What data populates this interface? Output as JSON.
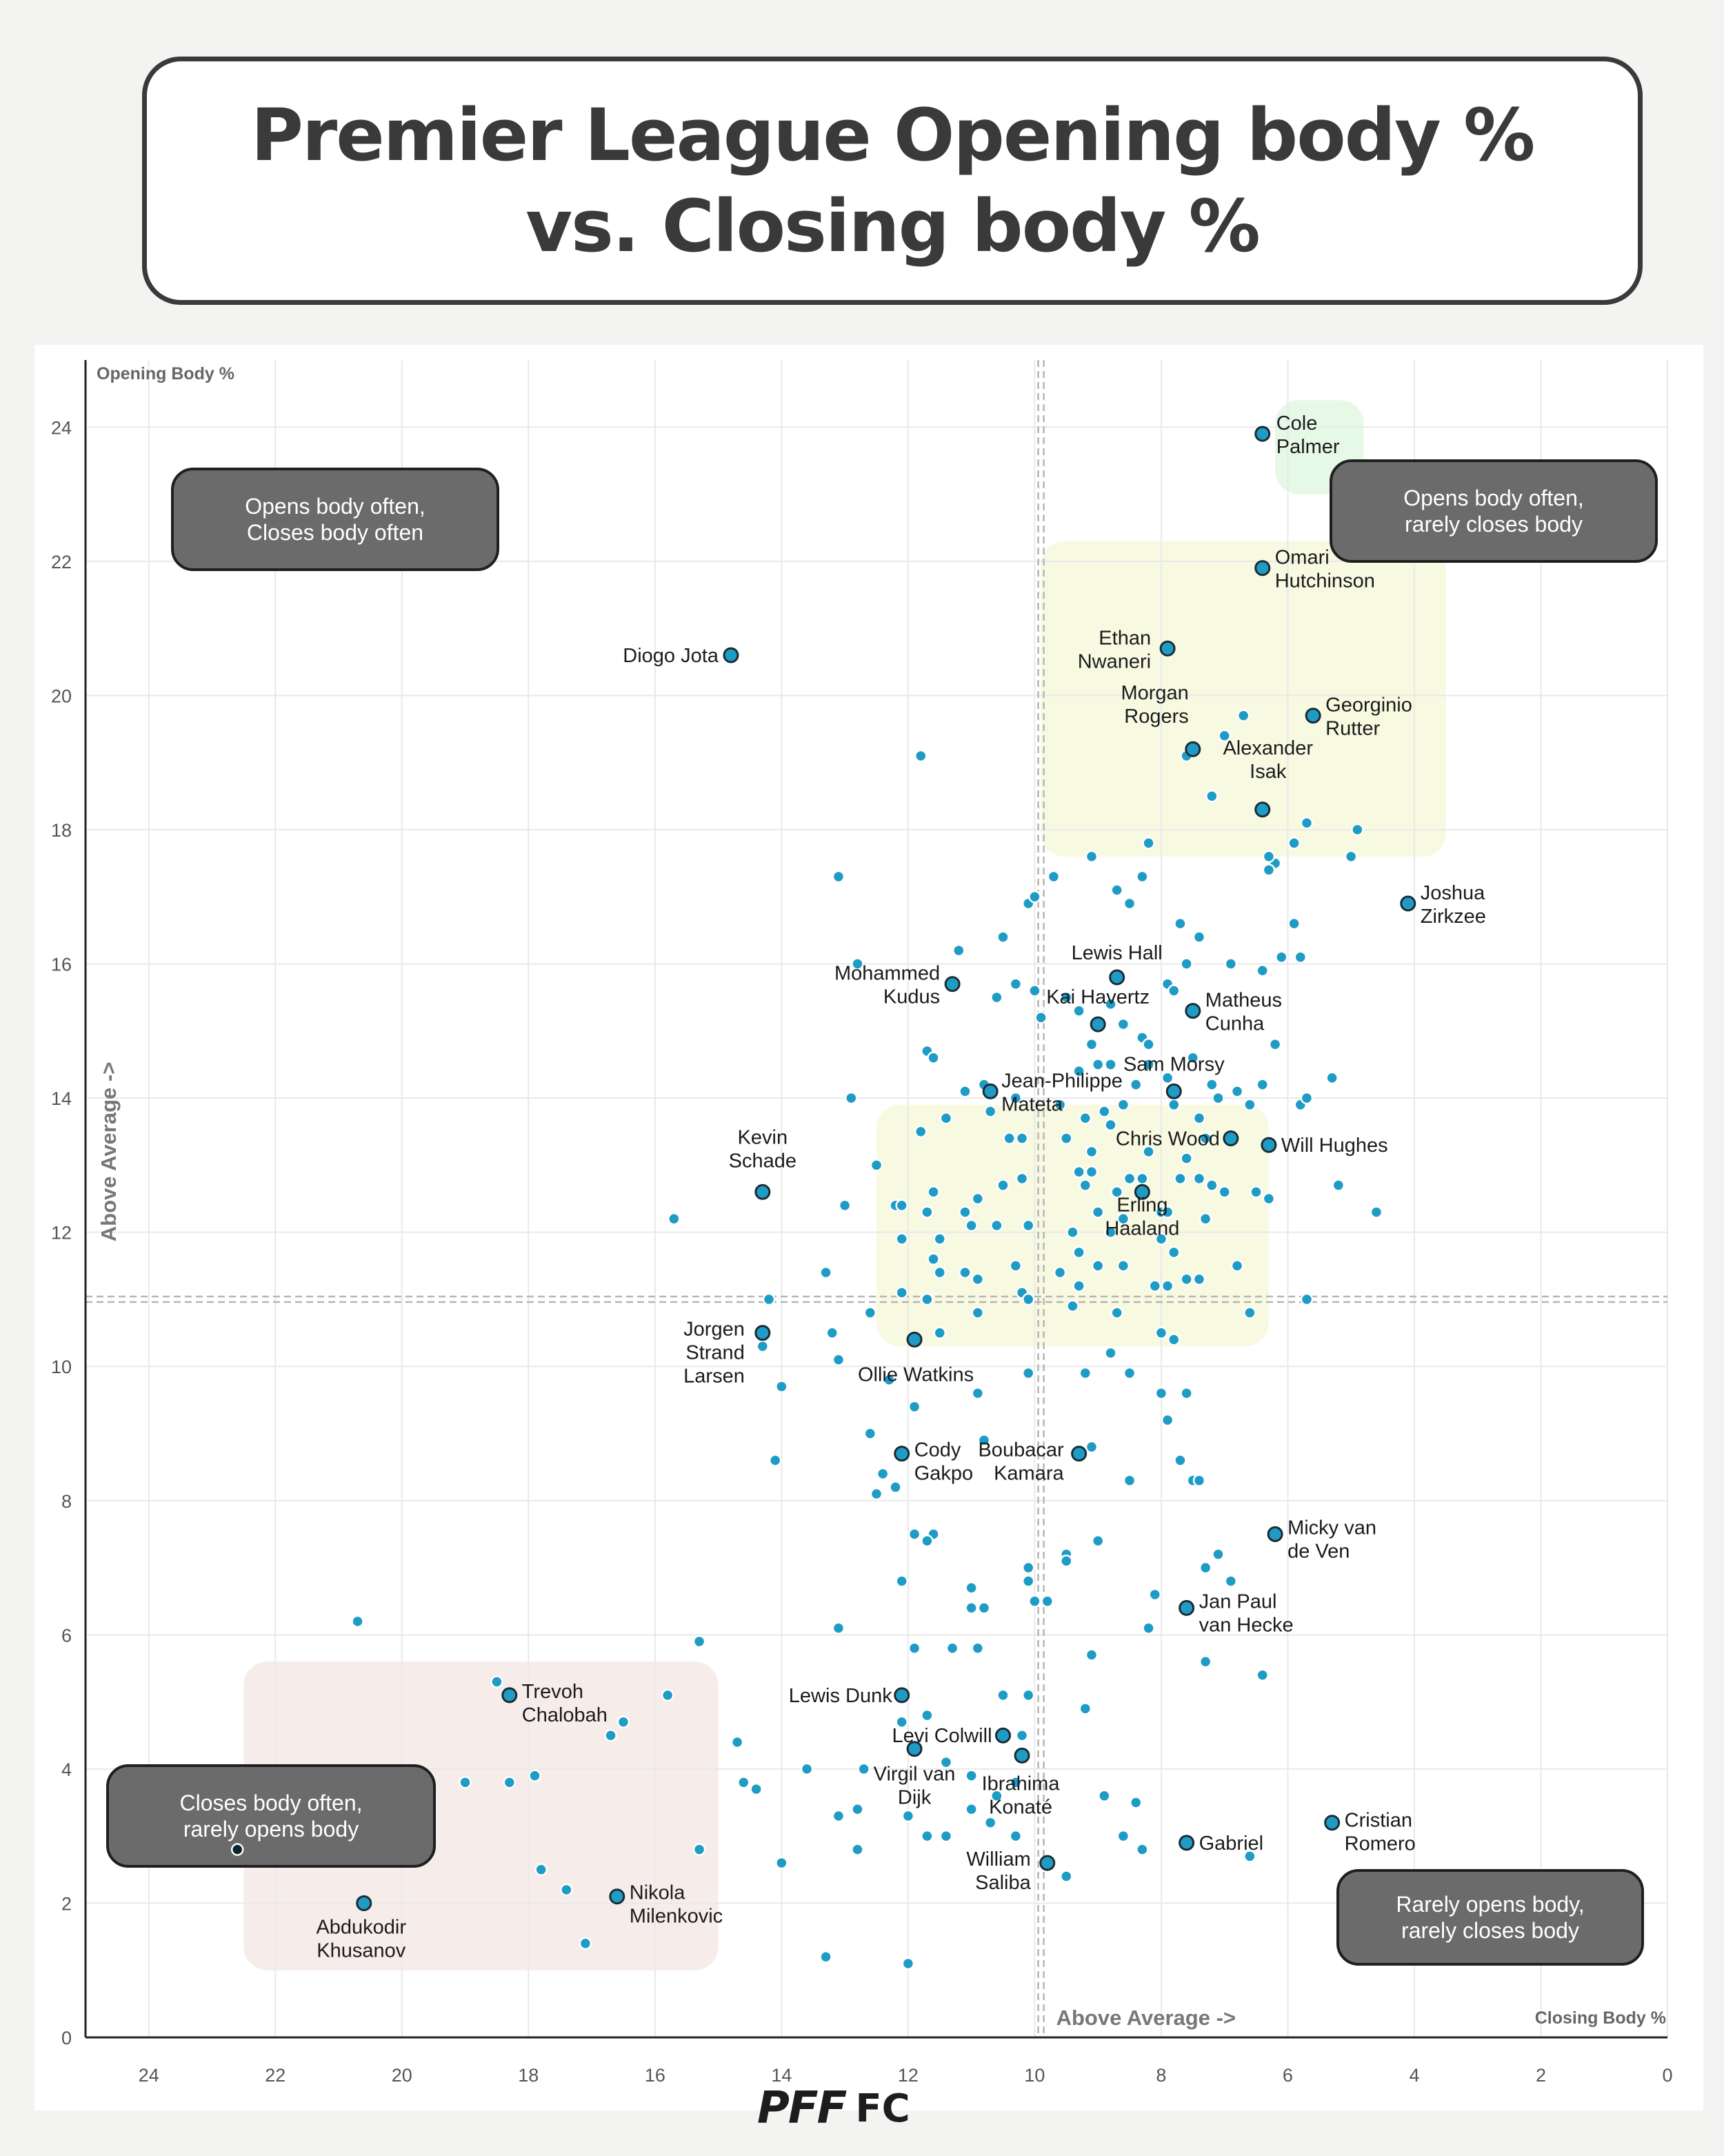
{
  "title": {
    "line1": "Premier League Opening body %",
    "line2": "vs. Closing body %"
  },
  "logo": {
    "pff": "PFF",
    "fc": "FC"
  },
  "colors": {
    "dot": "#1e9cc6",
    "dotStroke": "#ffffff",
    "labeledStroke": "#1c2b33",
    "quadrantBox": "#6b6b6b",
    "greenZone": "#e6f8e6",
    "yellowZone": "#f8f9e1",
    "redZone": "#f6ecea"
  },
  "chart_data": {
    "type": "scatter",
    "title": "Premier League Opening body % vs. Closing body %",
    "xlabel": "Closing Body %",
    "ylabel": "Opening Body %",
    "x_axis_reversed": true,
    "xlim": [
      25,
      0
    ],
    "ylim": [
      0,
      25
    ],
    "xticks": [
      24,
      22,
      20,
      18,
      16,
      14,
      12,
      10,
      8,
      6,
      4,
      2,
      0
    ],
    "yticks": [
      0,
      2,
      4,
      6,
      8,
      10,
      12,
      14,
      16,
      18,
      20,
      22,
      24
    ],
    "grid": true,
    "averages": {
      "x": 9.9,
      "y": 11.0
    },
    "avg_label_x": "Above Average ->",
    "avg_label_y": "Above Average ->",
    "quadrant_labels": [
      {
        "text": [
          "Opens body often,",
          "Closes body often"
        ],
        "corner": "top-left"
      },
      {
        "text": [
          "Opens body often,",
          "rarely closes body"
        ],
        "corner": "top-right"
      },
      {
        "text": [
          "Closes body often,",
          "rarely opens body"
        ],
        "corner": "bottom-left"
      },
      {
        "text": [
          "Rarely opens body,",
          "rarely closes body"
        ],
        "corner": "bottom-right"
      }
    ],
    "zones": [
      {
        "color": "green",
        "x": [
          6.2,
          4.8
        ],
        "y": [
          23.0,
          24.4
        ]
      },
      {
        "color": "yellow",
        "x": [
          9.9,
          3.5
        ],
        "y": [
          17.6,
          22.3
        ]
      },
      {
        "color": "yellow",
        "x": [
          12.5,
          6.3
        ],
        "y": [
          10.3,
          13.9
        ]
      },
      {
        "color": "red",
        "x": [
          22.5,
          15.0
        ],
        "y": [
          1.0,
          5.6
        ]
      }
    ],
    "labeled": [
      {
        "name": [
          "Cole",
          "Palmer"
        ],
        "x": 6.4,
        "y": 23.9
      },
      {
        "name": [
          "Omari",
          "Hutchinson"
        ],
        "x": 6.4,
        "y": 21.9
      },
      {
        "name": [
          "Ethan",
          "Nwaneri"
        ],
        "x": 7.9,
        "y": 20.7
      },
      {
        "name": [
          "Morgan",
          "Rogers"
        ],
        "x": 7.5,
        "y": 19.2
      },
      {
        "name": [
          "Georginio",
          "Rutter"
        ],
        "x": 5.6,
        "y": 19.7
      },
      {
        "name": [
          "Alexander",
          "Isak"
        ],
        "x": 6.4,
        "y": 18.3
      },
      {
        "name": [
          "Diogo Jota"
        ],
        "x": 14.8,
        "y": 20.6
      },
      {
        "name": [
          "Joshua",
          "Zirkzee"
        ],
        "x": 4.1,
        "y": 16.9
      },
      {
        "name": [
          "Lewis Hall"
        ],
        "x": 8.7,
        "y": 15.8
      },
      {
        "name": [
          "Mohammed",
          "Kudus"
        ],
        "x": 11.3,
        "y": 15.7
      },
      {
        "name": [
          "Kai Havertz"
        ],
        "x": 9.0,
        "y": 15.1
      },
      {
        "name": [
          "Matheus",
          "Cunha"
        ],
        "x": 7.5,
        "y": 15.3
      },
      {
        "name": [
          "Sam Morsy"
        ],
        "x": 7.8,
        "y": 14.1
      },
      {
        "name": [
          "Jean-Philippe",
          "Mateta"
        ],
        "x": 10.7,
        "y": 14.1
      },
      {
        "name": [
          "Chris Wood"
        ],
        "x": 6.9,
        "y": 13.4
      },
      {
        "name": [
          "Will Hughes"
        ],
        "x": 6.3,
        "y": 13.3
      },
      {
        "name": [
          "Kevin",
          "Schade"
        ],
        "x": 14.3,
        "y": 12.6
      },
      {
        "name": [
          "Erling",
          "Haaland"
        ],
        "x": 8.3,
        "y": 12.6
      },
      {
        "name": [
          "Jorgen",
          "Strand",
          "Larsen"
        ],
        "x": 14.3,
        "y": 10.5
      },
      {
        "name": [
          "Ollie Watkins"
        ],
        "x": 11.9,
        "y": 10.4
      },
      {
        "name": [
          "Cody",
          "Gakpo"
        ],
        "x": 12.1,
        "y": 8.7
      },
      {
        "name": [
          "Boubacar",
          "Kamara"
        ],
        "x": 9.3,
        "y": 8.7
      },
      {
        "name": [
          "Micky van",
          "de Ven"
        ],
        "x": 6.2,
        "y": 7.5
      },
      {
        "name": [
          "Jan Paul",
          "van Hecke"
        ],
        "x": 7.6,
        "y": 6.4
      },
      {
        "name": [
          "Trevoh",
          "Chalobah"
        ],
        "x": 18.3,
        "y": 5.1
      },
      {
        "name": [
          "Lewis Dunk"
        ],
        "x": 12.1,
        "y": 5.1
      },
      {
        "name": [
          "Levi Colwill"
        ],
        "x": 10.5,
        "y": 4.5
      },
      {
        "name": [
          "Virgil van",
          "Dijk"
        ],
        "x": 11.9,
        "y": 4.3
      },
      {
        "name": [
          "Ibrahima",
          "Konaté"
        ],
        "x": 10.2,
        "y": 4.2
      },
      {
        "name": [
          "Cristian",
          "Romero"
        ],
        "x": 5.3,
        "y": 3.2
      },
      {
        "name": [
          "Gabriel"
        ],
        "x": 7.6,
        "y": 2.9
      },
      {
        "name": [
          "William",
          "Saliba"
        ],
        "x": 9.8,
        "y": 2.6
      },
      {
        "name": [
          "Abdukodir",
          "Khusanov"
        ],
        "x": 20.6,
        "y": 2.0
      },
      {
        "name": [
          "Nikola",
          "Milenkovic"
        ],
        "x": 16.6,
        "y": 2.1
      }
    ],
    "others": [
      [
        11.8,
        19.1
      ],
      [
        13.1,
        17.3
      ],
      [
        12.8,
        16.0
      ],
      [
        11.2,
        16.2
      ],
      [
        10.5,
        16.4
      ],
      [
        10.1,
        16.9
      ],
      [
        10.0,
        17.0
      ],
      [
        9.7,
        17.3
      ],
      [
        9.1,
        17.6
      ],
      [
        8.7,
        17.1
      ],
      [
        8.3,
        17.3
      ],
      [
        8.5,
        16.9
      ],
      [
        8.2,
        17.8
      ],
      [
        10.3,
        15.7
      ],
      [
        10.6,
        15.5
      ],
      [
        10.0,
        15.6
      ],
      [
        9.9,
        15.2
      ],
      [
        9.5,
        15.5
      ],
      [
        9.3,
        15.3
      ],
      [
        9.1,
        14.8
      ],
      [
        8.6,
        15.1
      ],
      [
        8.3,
        14.9
      ],
      [
        8.8,
        15.4
      ],
      [
        7.9,
        15.7
      ],
      [
        7.8,
        15.6
      ],
      [
        7.4,
        16.4
      ],
      [
        7.6,
        16.0
      ],
      [
        6.9,
        16.0
      ],
      [
        7.7,
        16.6
      ],
      [
        6.1,
        16.1
      ],
      [
        5.9,
        16.6
      ],
      [
        5.8,
        16.1
      ],
      [
        6.4,
        15.9
      ],
      [
        6.2,
        17.5
      ],
      [
        6.3,
        17.6
      ],
      [
        6.3,
        17.4
      ],
      [
        5.9,
        17.8
      ],
      [
        5.7,
        18.1
      ],
      [
        5.0,
        17.6
      ],
      [
        4.9,
        18.0
      ],
      [
        7.2,
        18.5
      ],
      [
        7.0,
        19.4
      ],
      [
        7.6,
        19.1
      ],
      [
        6.7,
        19.7
      ],
      [
        11.7,
        14.7
      ],
      [
        11.6,
        14.6
      ],
      [
        12.9,
        14.0
      ],
      [
        11.4,
        13.7
      ],
      [
        11.1,
        14.1
      ],
      [
        10.8,
        14.2
      ],
      [
        10.7,
        13.8
      ],
      [
        10.4,
        13.4
      ],
      [
        10.2,
        13.4
      ],
      [
        10.3,
        14.0
      ],
      [
        9.6,
        13.9
      ],
      [
        9.3,
        14.4
      ],
      [
        9.0,
        14.5
      ],
      [
        8.8,
        14.5
      ],
      [
        8.4,
        14.2
      ],
      [
        8.2,
        14.8
      ],
      [
        8.2,
        14.5
      ],
      [
        7.9,
        14.3
      ],
      [
        7.5,
        14.6
      ],
      [
        7.2,
        14.2
      ],
      [
        7.1,
        14.0
      ],
      [
        6.8,
        14.1
      ],
      [
        6.6,
        13.9
      ],
      [
        6.4,
        14.2
      ],
      [
        6.2,
        14.8
      ],
      [
        5.8,
        13.9
      ],
      [
        5.7,
        14.0
      ],
      [
        5.3,
        14.3
      ],
      [
        7.8,
        13.9
      ],
      [
        7.4,
        13.7
      ],
      [
        9.2,
        13.7
      ],
      [
        8.9,
        13.8
      ],
      [
        8.6,
        13.9
      ],
      [
        8.8,
        13.6
      ],
      [
        9.1,
        13.2
      ],
      [
        9.5,
        13.4
      ],
      [
        8.2,
        13.2
      ],
      [
        7.6,
        13.1
      ],
      [
        7.3,
        13.4
      ],
      [
        12.5,
        13.0
      ],
      [
        11.8,
        13.5
      ],
      [
        10.2,
        12.8
      ],
      [
        10.5,
        12.7
      ],
      [
        10.9,
        12.5
      ],
      [
        11.1,
        12.3
      ],
      [
        11.6,
        12.6
      ],
      [
        11.7,
        12.3
      ],
      [
        12.2,
        12.4
      ],
      [
        12.1,
        12.4
      ],
      [
        13.0,
        12.4
      ],
      [
        9.3,
        12.9
      ],
      [
        9.1,
        12.9
      ],
      [
        9.2,
        12.7
      ],
      [
        9.0,
        12.3
      ],
      [
        8.7,
        12.6
      ],
      [
        8.5,
        12.8
      ],
      [
        8.3,
        12.8
      ],
      [
        8.0,
        12.3
      ],
      [
        7.9,
        12.3
      ],
      [
        7.7,
        12.8
      ],
      [
        7.4,
        12.8
      ],
      [
        7.2,
        12.7
      ],
      [
        7.0,
        12.6
      ],
      [
        6.5,
        12.6
      ],
      [
        6.3,
        12.5
      ],
      [
        7.8,
        11.7
      ],
      [
        8.6,
        12.2
      ],
      [
        7.3,
        12.2
      ],
      [
        5.2,
        12.7
      ],
      [
        4.6,
        12.3
      ],
      [
        15.7,
        12.2
      ],
      [
        11.0,
        12.1
      ],
      [
        10.6,
        12.1
      ],
      [
        10.1,
        12.1
      ],
      [
        9.4,
        12.0
      ],
      [
        8.8,
        12.0
      ],
      [
        8.0,
        11.9
      ],
      [
        12.1,
        11.9
      ],
      [
        11.5,
        11.9
      ],
      [
        11.6,
        11.6
      ],
      [
        11.5,
        11.4
      ],
      [
        11.1,
        11.4
      ],
      [
        10.9,
        11.3
      ],
      [
        10.3,
        11.5
      ],
      [
        9.6,
        11.4
      ],
      [
        9.3,
        11.7
      ],
      [
        9.0,
        11.5
      ],
      [
        8.6,
        11.5
      ],
      [
        8.1,
        11.2
      ],
      [
        7.9,
        11.2
      ],
      [
        7.6,
        11.3
      ],
      [
        7.4,
        11.3
      ],
      [
        6.8,
        11.5
      ],
      [
        13.3,
        11.4
      ],
      [
        12.1,
        11.1
      ],
      [
        11.7,
        11.0
      ],
      [
        10.9,
        10.8
      ],
      [
        10.2,
        11.1
      ],
      [
        10.1,
        11.0
      ],
      [
        9.4,
        10.9
      ],
      [
        9.3,
        11.2
      ],
      [
        8.7,
        10.8
      ],
      [
        8.0,
        10.5
      ],
      [
        7.8,
        10.4
      ],
      [
        6.6,
        10.8
      ],
      [
        5.7,
        11.0
      ],
      [
        14.2,
        11.0
      ],
      [
        12.6,
        10.8
      ],
      [
        11.5,
        10.5
      ],
      [
        13.2,
        10.5
      ],
      [
        14.3,
        10.3
      ],
      [
        13.1,
        10.1
      ],
      [
        14.0,
        9.7
      ],
      [
        12.3,
        9.8
      ],
      [
        10.1,
        9.9
      ],
      [
        11.9,
        9.4
      ],
      [
        10.9,
        9.6
      ],
      [
        9.2,
        9.9
      ],
      [
        8.8,
        10.2
      ],
      [
        8.5,
        9.9
      ],
      [
        8.0,
        9.6
      ],
      [
        7.6,
        9.6
      ],
      [
        7.9,
        9.2
      ],
      [
        9.1,
        8.8
      ],
      [
        7.7,
        8.6
      ],
      [
        7.5,
        8.3
      ],
      [
        7.4,
        8.3
      ],
      [
        8.5,
        8.3
      ],
      [
        12.6,
        9.0
      ],
      [
        14.1,
        8.6
      ],
      [
        12.4,
        8.4
      ],
      [
        12.5,
        8.1
      ],
      [
        12.2,
        8.2
      ],
      [
        10.8,
        8.9
      ],
      [
        11.9,
        7.5
      ],
      [
        11.6,
        7.5
      ],
      [
        11.7,
        7.4
      ],
      [
        12.1,
        6.8
      ],
      [
        10.1,
        7.0
      ],
      [
        9.5,
        7.2
      ],
      [
        9.5,
        7.1
      ],
      [
        9.0,
        7.4
      ],
      [
        7.3,
        7.0
      ],
      [
        7.1,
        7.2
      ],
      [
        6.9,
        6.8
      ],
      [
        11.0,
        6.7
      ],
      [
        10.1,
        6.8
      ],
      [
        11.0,
        6.4
      ],
      [
        10.8,
        6.4
      ],
      [
        10.0,
        6.5
      ],
      [
        9.8,
        6.5
      ],
      [
        8.1,
        6.6
      ],
      [
        8.2,
        6.1
      ],
      [
        13.1,
        6.1
      ],
      [
        11.9,
        5.8
      ],
      [
        11.3,
        5.8
      ],
      [
        10.9,
        5.8
      ],
      [
        9.1,
        5.7
      ],
      [
        7.3,
        5.6
      ],
      [
        6.4,
        5.4
      ],
      [
        20.7,
        6.2
      ],
      [
        15.3,
        5.9
      ],
      [
        18.5,
        5.3
      ],
      [
        15.8,
        5.1
      ],
      [
        16.5,
        4.7
      ],
      [
        16.7,
        4.5
      ],
      [
        14.7,
        4.4
      ],
      [
        10.5,
        5.1
      ],
      [
        10.1,
        5.1
      ],
      [
        9.2,
        4.9
      ],
      [
        11.7,
        4.8
      ],
      [
        12.1,
        4.7
      ],
      [
        10.2,
        4.5
      ],
      [
        19.0,
        3.8
      ],
      [
        18.3,
        3.8
      ],
      [
        17.9,
        3.9
      ],
      [
        14.6,
        3.8
      ],
      [
        14.4,
        3.7
      ],
      [
        13.6,
        4.0
      ],
      [
        12.7,
        4.0
      ],
      [
        11.4,
        4.1
      ],
      [
        11.0,
        3.9
      ],
      [
        10.6,
        3.6
      ],
      [
        10.3,
        3.8
      ],
      [
        8.9,
        3.6
      ],
      [
        8.4,
        3.5
      ],
      [
        13.1,
        3.3
      ],
      [
        12.8,
        3.4
      ],
      [
        12.0,
        3.3
      ],
      [
        11.0,
        3.4
      ],
      [
        10.7,
        3.2
      ],
      [
        10.3,
        3.0
      ],
      [
        11.7,
        3.0
      ],
      [
        11.4,
        3.0
      ],
      [
        12.8,
        2.8
      ],
      [
        15.3,
        2.8
      ],
      [
        8.6,
        3.0
      ],
      [
        8.3,
        2.8
      ],
      [
        6.6,
        2.7
      ],
      [
        9.5,
        2.4
      ],
      [
        14.0,
        2.6
      ],
      [
        17.8,
        2.5
      ],
      [
        17.4,
        2.2
      ],
      [
        17.1,
        1.4
      ],
      [
        13.3,
        1.2
      ],
      [
        12.0,
        1.1
      ],
      [
        22.6,
        2.8
      ]
    ]
  }
}
